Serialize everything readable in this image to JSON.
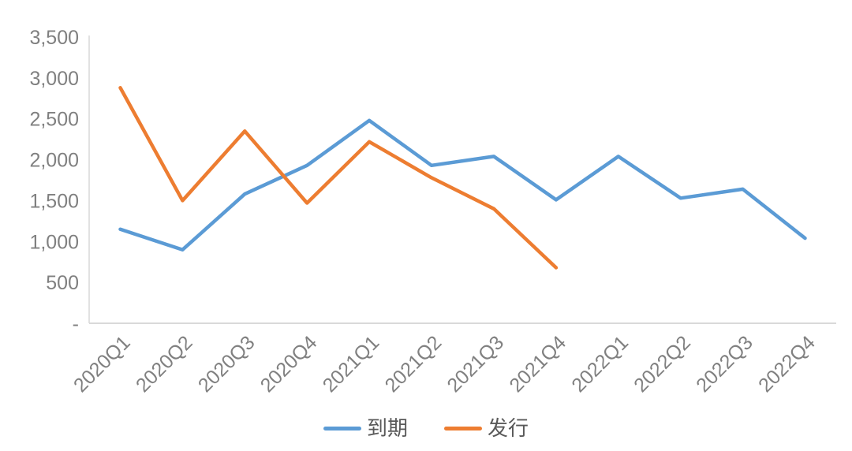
{
  "chart_data": {
    "type": "line",
    "title": "",
    "categories": [
      "2020Q1",
      "2020Q2",
      "2020Q3",
      "2020Q4",
      "2021Q1",
      "2021Q2",
      "2021Q3",
      "2021Q4",
      "2022Q1",
      "2022Q2",
      "2022Q3",
      "2022Q4"
    ],
    "series": [
      {
        "name": "到期",
        "color": "#5B9BD5",
        "values": [
          1150,
          900,
          1580,
          1930,
          2480,
          1930,
          2040,
          1510,
          2040,
          1530,
          1640,
          1040
        ]
      },
      {
        "name": "发行",
        "color": "#ED7D31",
        "values": [
          2880,
          1500,
          2350,
          1470,
          2220,
          1780,
          1400,
          680,
          null,
          null,
          null,
          null
        ]
      }
    ],
    "y_axis": {
      "min": 0,
      "max": 3500,
      "step": 500,
      "tick_labels": [
        "-",
        "500",
        "1,000",
        "1,500",
        "2,000",
        "2,500",
        "3,000",
        "3,500"
      ]
    },
    "x_axis": {
      "label_rotation_deg": -45
    },
    "legend_position": "bottom",
    "grid": false,
    "line_width": 4.5
  },
  "style": {
    "axis_line_color": "#D9D9D9",
    "tick_text_color": "#808080",
    "legend_text_color": "#595959",
    "background": "#FFFFFF"
  }
}
